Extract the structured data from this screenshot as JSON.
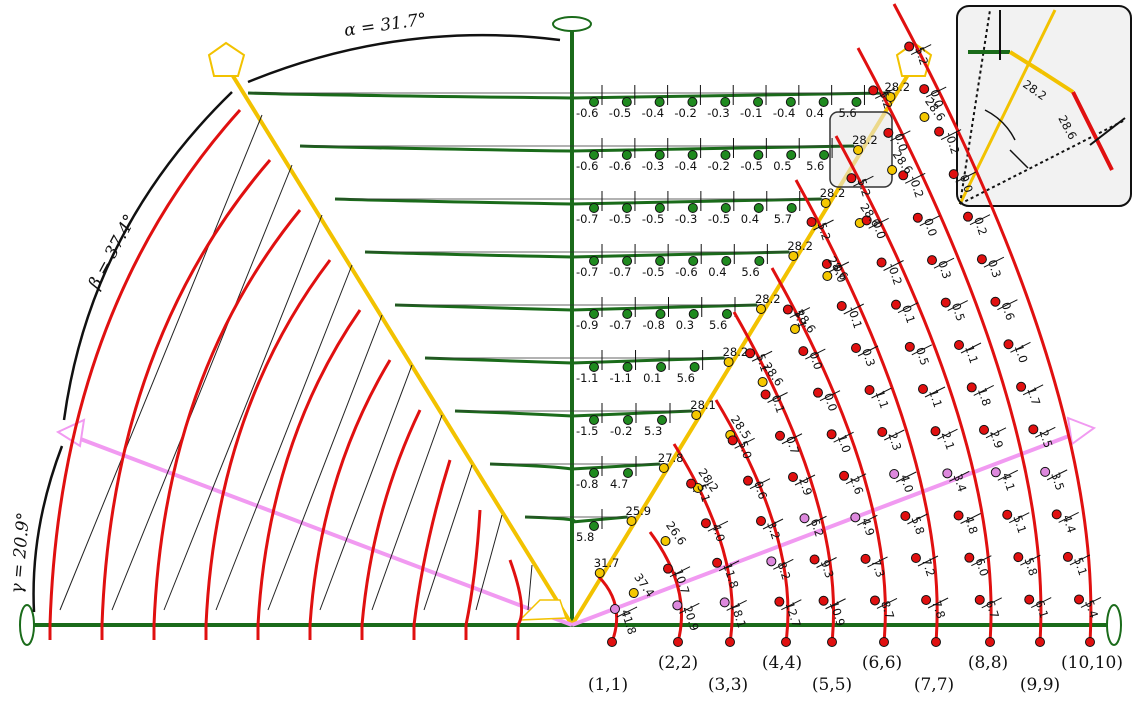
{
  "angles": {
    "alpha": "α = 31.7°",
    "beta": "β = 37.4°",
    "gamma": "γ = 20.9°"
  },
  "pair_labels": [
    "(1,1)",
    "(2,2)",
    "(3,3)",
    "(4,4)",
    "(5,5)",
    "(6,6)",
    "(7,7)",
    "(8,8)",
    "(9,9)",
    "(10,10)"
  ],
  "green_rows": [
    [
      "-0.6",
      "-0.5",
      "-0.4",
      "-0.2",
      "-0.3",
      "-0.1",
      "-0.4",
      "0.4",
      "5.6"
    ],
    [
      "-0.6",
      "-0.6",
      "-0.3",
      "-0.4",
      "-0.2",
      "-0.5",
      "0.5",
      "5.6"
    ],
    [
      "-0.7",
      "-0.5",
      "-0.5",
      "-0.3",
      "-0.5",
      "0.4",
      "5.7"
    ],
    [
      "-0.7",
      "-0.7",
      "-0.5",
      "-0.6",
      "0.4",
      "5.6"
    ],
    [
      "-0.9",
      "-0.7",
      "-0.8",
      "0.3",
      "5.6"
    ],
    [
      "-1.1",
      "-1.1",
      "0.1",
      "5.6"
    ],
    [
      "-1.5",
      "-0.2",
      "5.3"
    ],
    [
      "-0.8",
      "4.7"
    ],
    [
      "5.8"
    ]
  ],
  "yellow_left": [
    "28.2",
    "28.2",
    "28.2",
    "28.2",
    "28.2",
    "28.2",
    "28.1",
    "27.8",
    "25.9",
    "31.7"
  ],
  "yellow_right": [
    "28.6",
    "28.6",
    "28.6",
    "28.6",
    "28.6",
    "28.6",
    "28.5",
    "28.2",
    "26.6",
    "37.4"
  ],
  "red_cols": [
    [
      "41.8"
    ],
    [
      "10.7",
      "20.9"
    ],
    [
      "5.1",
      "4.0",
      "11.8",
      "18.1"
    ],
    [
      "5.0",
      "0.6",
      "3.2",
      "8.2",
      "12.7"
    ],
    [
      "5.1",
      "0.1",
      "0.7",
      "2.9",
      "6.2",
      "9.3",
      "10.9"
    ],
    [
      "5.1",
      "0.0",
      "0.0",
      "1.0",
      "2.6",
      "4.9",
      "7.3",
      "8.7"
    ],
    [
      "5.2",
      "0.0",
      "-0.1",
      "0.3",
      "1.1",
      "2.3",
      "4.0",
      "5.8",
      "7.2",
      "7.8"
    ],
    [
      "5.2",
      "0.0",
      "-0.2",
      "0.1",
      "0.5",
      "1.1",
      "2.1",
      "3.4",
      "4.8",
      "6.0",
      "6.7"
    ],
    [
      "5.2",
      "0.0",
      "-0.2",
      "0.0",
      "0.3",
      "0.5",
      "1.1",
      "1.8",
      "2.9",
      "4.1",
      "5.1",
      "5.8",
      "6.1"
    ],
    [
      "5.2",
      "0.0",
      "-0.2",
      "0.0",
      "0.2",
      "0.3",
      "0.6",
      "1.0",
      "1.7",
      "2.5",
      "3.5",
      "4.4",
      "5.1",
      "5.4"
    ]
  ],
  "inset": {
    "left": "28.2",
    "right": "28.6"
  },
  "colors": {
    "green": "#1a6b1a",
    "yellow": "#f2c200",
    "red": "#e01010",
    "pink": "#ee88ee",
    "dotGreen": "#1f8a1f",
    "dotRed": "#e01010",
    "dotYellow": "#f5c800",
    "dotPink": "#dd88dd"
  }
}
